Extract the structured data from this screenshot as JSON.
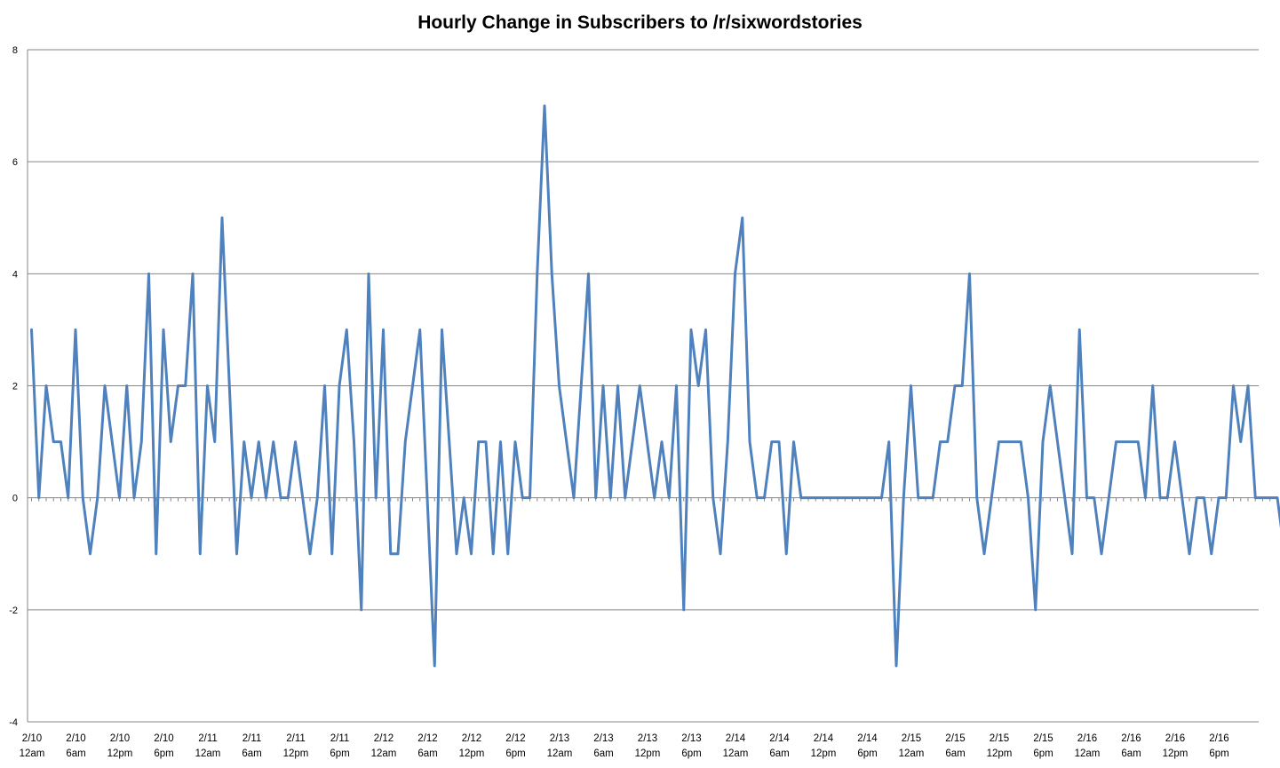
{
  "chart_data": {
    "type": "line",
    "title": "Hourly Change in Subscribers to /r/sixwordstories",
    "xlabel": "",
    "ylabel": "",
    "ylim": [
      -4,
      8
    ],
    "yticks": [
      -4,
      -2,
      0,
      2,
      4,
      6,
      8
    ],
    "grid": true,
    "legend": "none",
    "line_color": "#4F81BD",
    "x_tick_labels": [
      [
        "2/10",
        "12am"
      ],
      [
        "2/10",
        "6am"
      ],
      [
        "2/10",
        "12pm"
      ],
      [
        "2/10",
        "6pm"
      ],
      [
        "2/11",
        "12am"
      ],
      [
        "2/11",
        "6am"
      ],
      [
        "2/11",
        "12pm"
      ],
      [
        "2/11",
        "6pm"
      ],
      [
        "2/12",
        "12am"
      ],
      [
        "2/12",
        "6am"
      ],
      [
        "2/12",
        "12pm"
      ],
      [
        "2/12",
        "6pm"
      ],
      [
        "2/13",
        "12am"
      ],
      [
        "2/13",
        "6am"
      ],
      [
        "2/13",
        "12pm"
      ],
      [
        "2/13",
        "6pm"
      ],
      [
        "2/14",
        "12am"
      ],
      [
        "2/14",
        "6am"
      ],
      [
        "2/14",
        "12pm"
      ],
      [
        "2/14",
        "6pm"
      ],
      [
        "2/15",
        "12am"
      ],
      [
        "2/15",
        "6am"
      ],
      [
        "2/15",
        "12pm"
      ],
      [
        "2/15",
        "6pm"
      ],
      [
        "2/16",
        "12am"
      ],
      [
        "2/16",
        "6am"
      ],
      [
        "2/16",
        "12pm"
      ],
      [
        "2/16",
        "6pm"
      ]
    ],
    "series": [
      {
        "values": [
          3,
          0,
          2,
          1,
          1,
          0,
          3,
          0,
          -1,
          0,
          2,
          1,
          0,
          2,
          0,
          1,
          4,
          -1,
          3,
          1,
          2,
          2,
          4,
          -1,
          2,
          1,
          5,
          2,
          -1,
          1,
          0,
          1,
          0,
          1,
          0,
          0,
          1,
          0,
          -1,
          0,
          2,
          -1,
          2,
          3,
          1,
          -2,
          4,
          0,
          3,
          -1,
          -1,
          1,
          2,
          3,
          0,
          -3,
          3,
          1,
          -1,
          0,
          -1,
          1,
          1,
          -1,
          1,
          -1,
          1,
          0,
          0,
          4,
          7,
          4,
          2,
          1,
          0,
          2,
          4,
          0,
          2,
          0,
          2,
          0,
          1,
          2,
          1,
          0,
          1,
          0,
          2,
          -2,
          3,
          2,
          3,
          0,
          -1,
          1,
          4,
          5,
          1,
          0,
          0,
          1,
          1,
          -1,
          1,
          0,
          0,
          0,
          0,
          0,
          0,
          0,
          0,
          0,
          0,
          0,
          0,
          1,
          -3,
          0,
          2,
          0,
          0,
          0,
          1,
          1,
          2,
          2,
          4,
          0,
          -1,
          0,
          1,
          1,
          1,
          1,
          0,
          -2,
          1,
          2,
          1,
          0,
          -1,
          3,
          0,
          0,
          -1,
          0,
          1,
          1,
          1,
          1,
          0,
          2,
          0,
          0,
          1,
          0,
          -1,
          0,
          0,
          -1,
          0,
          0,
          2,
          1,
          2,
          0,
          0,
          0,
          0,
          -1
        ]
      }
    ]
  }
}
